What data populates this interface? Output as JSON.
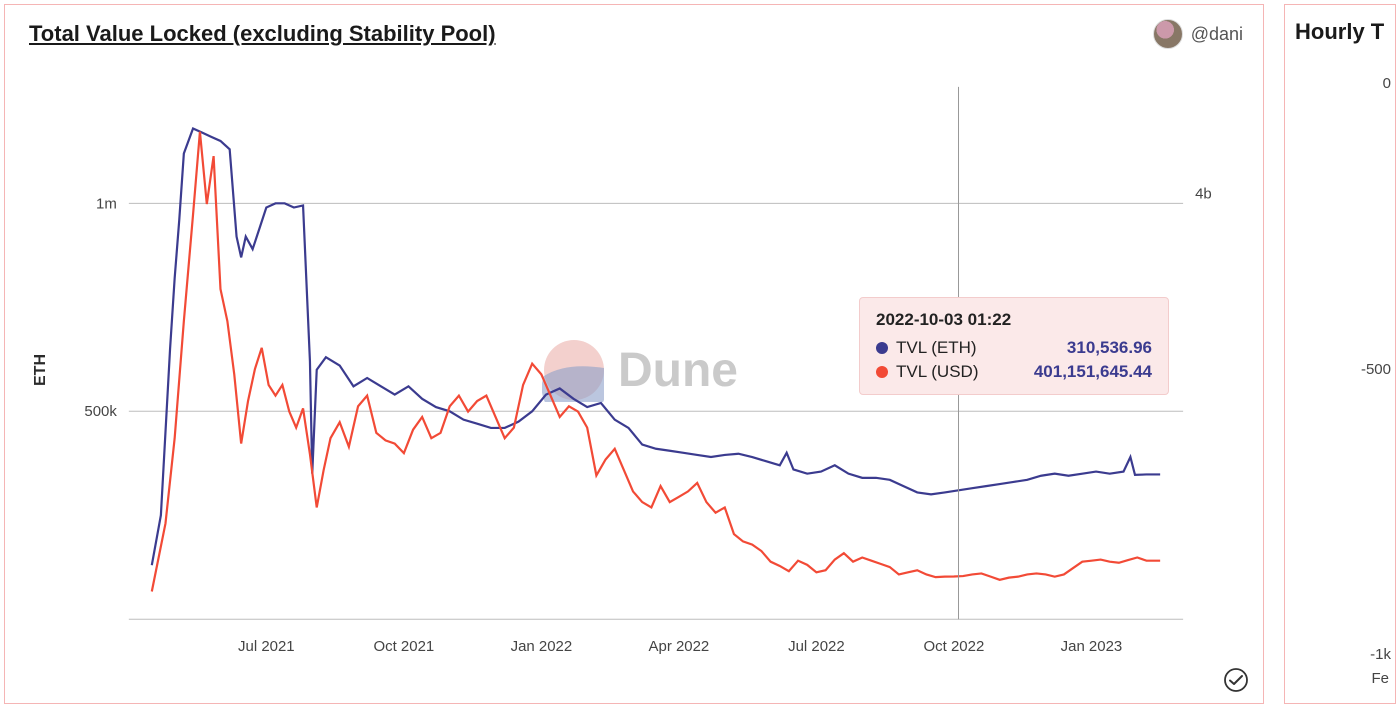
{
  "main": {
    "title": "Total Value Locked (excluding Stability Pool)",
    "author_handle": "@dani",
    "ylabel": "ETH",
    "watermark": "Dune",
    "background_color": "#ffffff",
    "border_color": "#f5b5b5",
    "grid_color": "#bdbdbd",
    "left_axis": {
      "min": 0,
      "max": 1280000,
      "ticks": [
        {
          "v": 500000,
          "label": "500k"
        },
        {
          "v": 1000000,
          "label": "1m"
        }
      ],
      "tick_fontsize": 15
    },
    "right_axis": {
      "min": 0,
      "max": 5000000000,
      "ticks": [
        {
          "v": 4000000000,
          "label": "4b"
        }
      ]
    },
    "x_axis": {
      "min": 0,
      "max": 23,
      "ticks": [
        {
          "v": 3,
          "label": "Jul 2021"
        },
        {
          "v": 6,
          "label": "Oct 2021"
        },
        {
          "v": 9,
          "label": "Jan 2022"
        },
        {
          "v": 12,
          "label": "Apr 2022"
        },
        {
          "v": 15,
          "label": "Jul 2022"
        },
        {
          "v": 18,
          "label": "Oct 2022"
        },
        {
          "v": 21,
          "label": "Jan 2023"
        }
      ]
    },
    "hover_x": 18.1,
    "series": [
      {
        "id": "eth",
        "label": "TVL (ETH)",
        "color": "#3b3b8f",
        "axis": "left",
        "line_width": 2.2,
        "points": [
          [
            0.5,
            130000
          ],
          [
            0.7,
            250000
          ],
          [
            0.9,
            650000
          ],
          [
            1.0,
            820000
          ],
          [
            1.1,
            960000
          ],
          [
            1.2,
            1120000
          ],
          [
            1.4,
            1180000
          ],
          [
            1.6,
            1170000
          ],
          [
            1.8,
            1160000
          ],
          [
            2.0,
            1150000
          ],
          [
            2.2,
            1130000
          ],
          [
            2.35,
            920000
          ],
          [
            2.45,
            870000
          ],
          [
            2.55,
            920000
          ],
          [
            2.7,
            890000
          ],
          [
            2.85,
            940000
          ],
          [
            3.0,
            990000
          ],
          [
            3.2,
            1000000
          ],
          [
            3.4,
            1000000
          ],
          [
            3.6,
            990000
          ],
          [
            3.8,
            995000
          ],
          [
            3.95,
            620000
          ],
          [
            4.0,
            350000
          ],
          [
            4.1,
            600000
          ],
          [
            4.3,
            630000
          ],
          [
            4.6,
            610000
          ],
          [
            4.9,
            560000
          ],
          [
            5.2,
            580000
          ],
          [
            5.5,
            560000
          ],
          [
            5.8,
            540000
          ],
          [
            6.1,
            560000
          ],
          [
            6.4,
            530000
          ],
          [
            6.7,
            510000
          ],
          [
            7.0,
            500000
          ],
          [
            7.3,
            480000
          ],
          [
            7.6,
            470000
          ],
          [
            7.9,
            460000
          ],
          [
            8.2,
            460000
          ],
          [
            8.5,
            475000
          ],
          [
            8.8,
            500000
          ],
          [
            9.1,
            540000
          ],
          [
            9.4,
            555000
          ],
          [
            9.7,
            530000
          ],
          [
            10.0,
            510000
          ],
          [
            10.3,
            520000
          ],
          [
            10.6,
            480000
          ],
          [
            10.9,
            460000
          ],
          [
            11.2,
            420000
          ],
          [
            11.5,
            410000
          ],
          [
            11.8,
            405000
          ],
          [
            12.1,
            400000
          ],
          [
            12.4,
            395000
          ],
          [
            12.7,
            390000
          ],
          [
            13.0,
            395000
          ],
          [
            13.3,
            398000
          ],
          [
            13.6,
            390000
          ],
          [
            13.9,
            380000
          ],
          [
            14.2,
            370000
          ],
          [
            14.35,
            400000
          ],
          [
            14.5,
            360000
          ],
          [
            14.8,
            350000
          ],
          [
            15.1,
            355000
          ],
          [
            15.4,
            370000
          ],
          [
            15.7,
            350000
          ],
          [
            16.0,
            340000
          ],
          [
            16.3,
            340000
          ],
          [
            16.6,
            335000
          ],
          [
            16.9,
            320000
          ],
          [
            17.2,
            305000
          ],
          [
            17.5,
            300000
          ],
          [
            17.8,
            305000
          ],
          [
            18.1,
            310000
          ],
          [
            18.4,
            315000
          ],
          [
            18.7,
            320000
          ],
          [
            19.0,
            325000
          ],
          [
            19.3,
            330000
          ],
          [
            19.6,
            335000
          ],
          [
            19.9,
            345000
          ],
          [
            20.2,
            350000
          ],
          [
            20.5,
            345000
          ],
          [
            20.8,
            350000
          ],
          [
            21.1,
            355000
          ],
          [
            21.4,
            350000
          ],
          [
            21.7,
            355000
          ],
          [
            21.85,
            390000
          ],
          [
            21.95,
            347000
          ],
          [
            22.2,
            348000
          ],
          [
            22.5,
            348000
          ]
        ]
      },
      {
        "id": "usd",
        "label": "TVL (USD)",
        "color": "#f24a36",
        "axis": "right",
        "line_width": 2.2,
        "points": [
          [
            0.5,
            260000000
          ],
          [
            0.8,
            900000000
          ],
          [
            1.0,
            1700000000
          ],
          [
            1.2,
            2800000000
          ],
          [
            1.4,
            3800000000
          ],
          [
            1.55,
            4580000000
          ],
          [
            1.7,
            3900000000
          ],
          [
            1.85,
            4350000000
          ],
          [
            2.0,
            3100000000
          ],
          [
            2.15,
            2800000000
          ],
          [
            2.3,
            2300000000
          ],
          [
            2.45,
            1650000000
          ],
          [
            2.6,
            2050000000
          ],
          [
            2.75,
            2350000000
          ],
          [
            2.9,
            2550000000
          ],
          [
            3.05,
            2200000000
          ],
          [
            3.2,
            2100000000
          ],
          [
            3.35,
            2200000000
          ],
          [
            3.5,
            1950000000
          ],
          [
            3.65,
            1800000000
          ],
          [
            3.8,
            1980000000
          ],
          [
            3.95,
            1550000000
          ],
          [
            4.1,
            1050000000
          ],
          [
            4.25,
            1400000000
          ],
          [
            4.4,
            1700000000
          ],
          [
            4.6,
            1850000000
          ],
          [
            4.8,
            1620000000
          ],
          [
            5.0,
            2000000000
          ],
          [
            5.2,
            2100000000
          ],
          [
            5.4,
            1750000000
          ],
          [
            5.6,
            1680000000
          ],
          [
            5.8,
            1650000000
          ],
          [
            6.0,
            1560000000
          ],
          [
            6.2,
            1780000000
          ],
          [
            6.4,
            1900000000
          ],
          [
            6.6,
            1700000000
          ],
          [
            6.8,
            1750000000
          ],
          [
            7.0,
            2000000000
          ],
          [
            7.2,
            2100000000
          ],
          [
            7.4,
            1950000000
          ],
          [
            7.6,
            2050000000
          ],
          [
            7.8,
            2100000000
          ],
          [
            8.0,
            1900000000
          ],
          [
            8.2,
            1700000000
          ],
          [
            8.4,
            1800000000
          ],
          [
            8.6,
            2200000000
          ],
          [
            8.8,
            2400000000
          ],
          [
            9.0,
            2300000000
          ],
          [
            9.2,
            2100000000
          ],
          [
            9.4,
            1900000000
          ],
          [
            9.6,
            2000000000
          ],
          [
            9.8,
            1950000000
          ],
          [
            10.0,
            1800000000
          ],
          [
            10.2,
            1350000000
          ],
          [
            10.4,
            1500000000
          ],
          [
            10.6,
            1600000000
          ],
          [
            10.8,
            1400000000
          ],
          [
            11.0,
            1200000000
          ],
          [
            11.2,
            1100000000
          ],
          [
            11.4,
            1050000000
          ],
          [
            11.6,
            1250000000
          ],
          [
            11.8,
            1100000000
          ],
          [
            12.0,
            1150000000
          ],
          [
            12.2,
            1200000000
          ],
          [
            12.4,
            1280000000
          ],
          [
            12.6,
            1100000000
          ],
          [
            12.8,
            1000000000
          ],
          [
            13.0,
            1050000000
          ],
          [
            13.2,
            800000000
          ],
          [
            13.4,
            730000000
          ],
          [
            13.6,
            700000000
          ],
          [
            13.8,
            640000000
          ],
          [
            14.0,
            540000000
          ],
          [
            14.2,
            500000000
          ],
          [
            14.4,
            450000000
          ],
          [
            14.6,
            550000000
          ],
          [
            14.8,
            510000000
          ],
          [
            15.0,
            440000000
          ],
          [
            15.2,
            460000000
          ],
          [
            15.4,
            560000000
          ],
          [
            15.6,
            620000000
          ],
          [
            15.8,
            540000000
          ],
          [
            16.0,
            580000000
          ],
          [
            16.2,
            550000000
          ],
          [
            16.4,
            520000000
          ],
          [
            16.6,
            490000000
          ],
          [
            16.8,
            420000000
          ],
          [
            17.0,
            440000000
          ],
          [
            17.2,
            460000000
          ],
          [
            17.4,
            420000000
          ],
          [
            17.6,
            395000000
          ],
          [
            17.8,
            400000000
          ],
          [
            18.0,
            401000000
          ],
          [
            18.2,
            405000000
          ],
          [
            18.4,
            420000000
          ],
          [
            18.6,
            430000000
          ],
          [
            18.8,
            400000000
          ],
          [
            19.0,
            370000000
          ],
          [
            19.2,
            390000000
          ],
          [
            19.4,
            400000000
          ],
          [
            19.6,
            420000000
          ],
          [
            19.8,
            430000000
          ],
          [
            20.0,
            420000000
          ],
          [
            20.2,
            400000000
          ],
          [
            20.4,
            420000000
          ],
          [
            20.6,
            480000000
          ],
          [
            20.8,
            540000000
          ],
          [
            21.0,
            550000000
          ],
          [
            21.2,
            560000000
          ],
          [
            21.4,
            540000000
          ],
          [
            21.6,
            530000000
          ],
          [
            21.8,
            555000000
          ],
          [
            22.0,
            580000000
          ],
          [
            22.2,
            550000000
          ],
          [
            22.5,
            550000000
          ]
        ]
      }
    ],
    "tooltip": {
      "date": "2022-10-03 01:22",
      "background_color": "#fbe9e9",
      "border_color": "#f3cccc",
      "rows": [
        {
          "dot_color": "#3b3b8f",
          "label": "TVL (ETH)",
          "value": "310,536.96",
          "value_color": "#3b3b8f"
        },
        {
          "dot_color": "#f24a36",
          "label": "TVL (USD)",
          "value": "401,151,645.44",
          "value_color": "#3b3b8f"
        }
      ]
    }
  },
  "side": {
    "title": "Hourly T",
    "yticks": [
      "0",
      "-500",
      "-1k"
    ],
    "xtick": "Fe"
  }
}
